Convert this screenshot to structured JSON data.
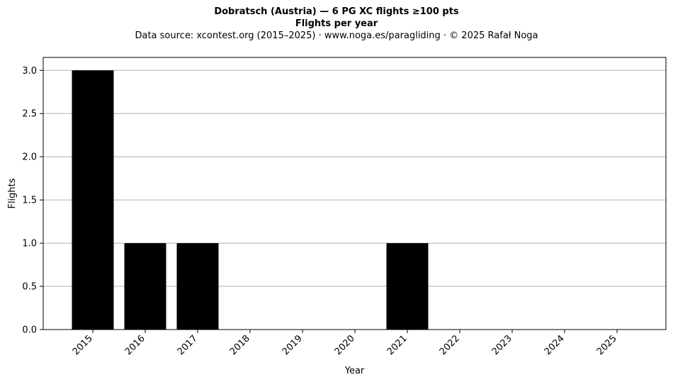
{
  "chart_data": {
    "type": "bar",
    "title": "Dobratsch (Austria)  —  6 PG XC flights ≥100 pts",
    "subtitle": "Flights per year",
    "source": "Data source: xcontest.org (2015–2025)  ·  www.noga.es/paragliding  ·  © 2025 Rafał Noga",
    "xlabel": "Year",
    "ylabel": "Flights",
    "categories": [
      "2015",
      "2016",
      "2017",
      "2018",
      "2019",
      "2020",
      "2021",
      "2022",
      "2023",
      "2024",
      "2025"
    ],
    "values": [
      3,
      1,
      1,
      0,
      0,
      0,
      1,
      0,
      0,
      0,
      0
    ],
    "ylim": [
      0,
      3.15
    ],
    "yticks": [
      "0.0",
      "0.5",
      "1.0",
      "1.5",
      "2.0",
      "2.5",
      "3.0"
    ],
    "grid": "y",
    "bar_color": "#000000",
    "grid_color": "#b0b0b0"
  }
}
